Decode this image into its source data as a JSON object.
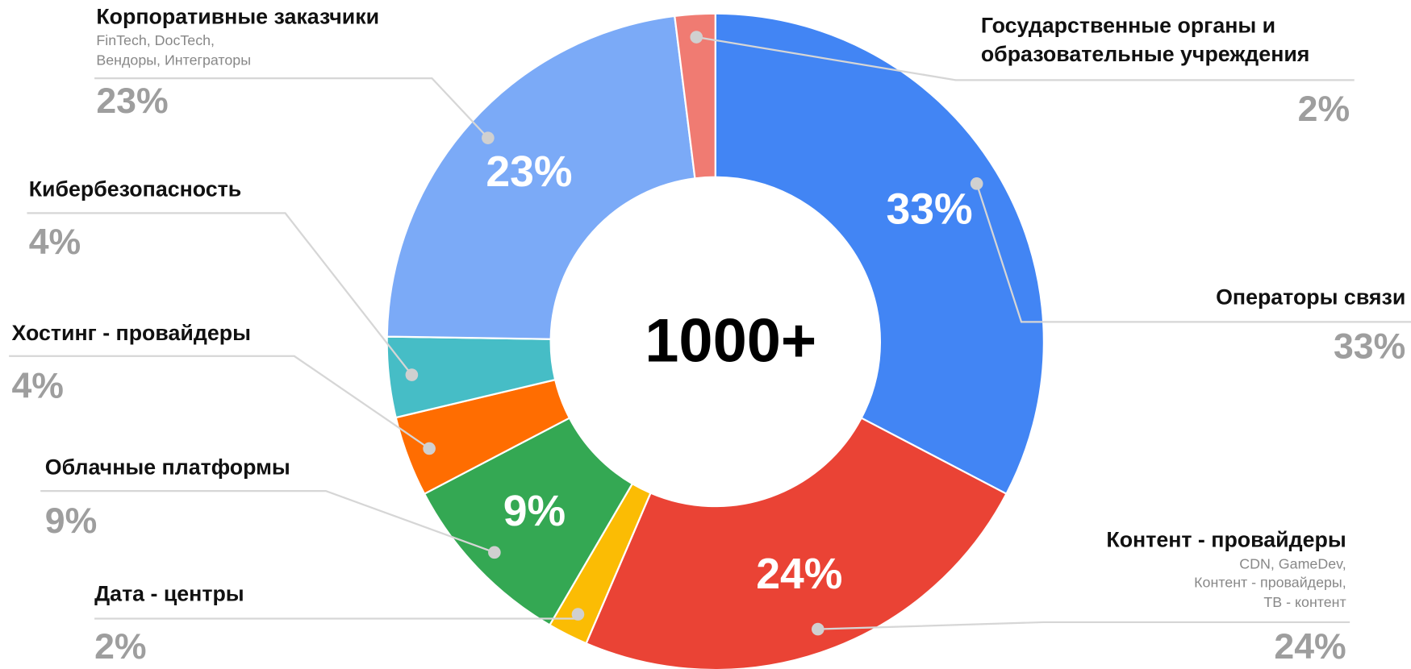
{
  "chart_data": {
    "type": "donut",
    "center_label": "1000+",
    "categories": [
      "Операторы связи",
      "Контент - провайдеры",
      "Дата - центры",
      "Облачные платформы",
      "Хостинг - провайдеры",
      "Кибербезопасность",
      "Корпоративные заказчики",
      "Государственные органы и образовательные учреждения"
    ],
    "descriptions": [
      [],
      [
        "CDN, GameDev,",
        "Контент - провайдеры,",
        "ТВ - контент"
      ],
      [],
      [],
      [],
      [],
      [
        "FinTech, DocTech,",
        "Вендоры, Интеграторы"
      ],
      []
    ],
    "values": [
      33,
      24,
      2,
      9,
      4,
      4,
      23,
      2
    ],
    "value_labels": [
      "33%",
      "24%",
      "2%",
      "9%",
      "4%",
      "4%",
      "23%",
      "2%"
    ],
    "colors": [
      "#4285f4",
      "#ea4335",
      "#fbbc04",
      "#34a853",
      "#ff6d01",
      "#46bdc6",
      "#7baaf7",
      "#f07b72"
    ]
  }
}
